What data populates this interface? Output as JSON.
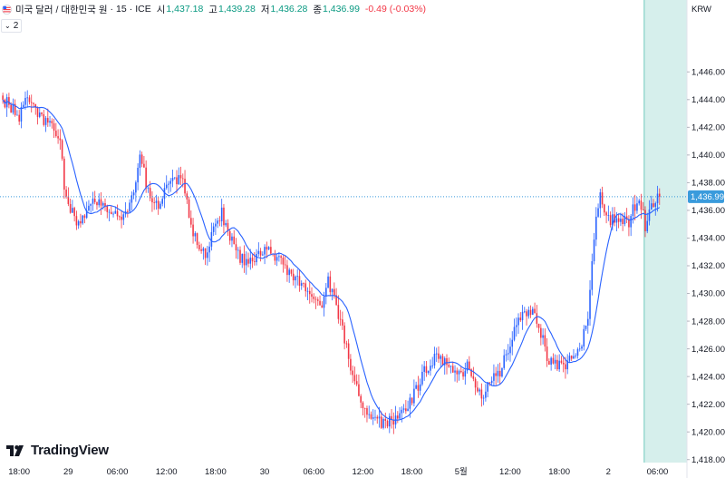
{
  "header": {
    "symbol": "미국 달러 / 대한민국 원",
    "interval": "15",
    "exchange": "ICE",
    "ohlc": [
      {
        "label": "시",
        "value": "1,437.18"
      },
      {
        "label": "고",
        "value": "1,439.28"
      },
      {
        "label": "저",
        "value": "1,436.28"
      },
      {
        "label": "종",
        "value": "1,436.99"
      }
    ],
    "change": "-0.49 (-0.03%)"
  },
  "indicator": {
    "label": "2"
  },
  "currency": "KRW",
  "watermark": "TradingView",
  "colors": {
    "up": "#089981",
    "down": "#f23645",
    "ma": "#2962ff",
    "highlight": "#d6efec",
    "price_line": "#3a9bdc"
  },
  "chart_data": {
    "type": "candlestick",
    "title": "미국 달러 / 대한민국 원 · 15 · ICE",
    "y_range": [
      1417.0,
      1450.8
    ],
    "y_ticks": [
      1418,
      1420,
      1422,
      1424,
      1426,
      1428,
      1430,
      1432,
      1434,
      1436,
      1438,
      1440,
      1442,
      1444,
      1446
    ],
    "y_tick_labels": [
      "1,418.00",
      "1,420.00",
      "1,422.00",
      "1,424.00",
      "1,426.00",
      "1,428.00",
      "1,430.00",
      "1,432.00",
      "1,434.00",
      "1,436.00",
      "1,438.00",
      "1,440.00",
      "1,442.00",
      "1,444.00",
      "1,446.00"
    ],
    "x_ticks": [
      {
        "label": "18:00",
        "at": 0
      },
      {
        "label": "29",
        "at": 24
      },
      {
        "label": "06:00",
        "at": 48
      },
      {
        "label": "12:00",
        "at": 72
      },
      {
        "label": "18:00",
        "at": 96
      },
      {
        "label": "30",
        "at": 120
      },
      {
        "label": "06:00",
        "at": 144
      },
      {
        "label": "12:00",
        "at": 168
      },
      {
        "label": "18:00",
        "at": 192
      },
      {
        "label": "5월",
        "at": 216
      },
      {
        "label": "12:00",
        "at": 240
      },
      {
        "label": "18:00",
        "at": 264
      },
      {
        "label": "2",
        "at": 288
      },
      {
        "label": "06:00",
        "at": 312
      }
    ],
    "bars_total": 334,
    "bars_visible": 322,
    "highlight_from_bar": 314,
    "last_price": 1436.99,
    "last_price_label": "1,436.99",
    "ma_period": 12,
    "series": {
      "name": "USD/KRW",
      "close_path": [
        {
          "i": 0,
          "v": 1444.0
        },
        {
          "i": 4,
          "v": 1443.5
        },
        {
          "i": 8,
          "v": 1442.7
        },
        {
          "i": 12,
          "v": 1444.2
        },
        {
          "i": 16,
          "v": 1443.1
        },
        {
          "i": 20,
          "v": 1442.6
        },
        {
          "i": 24,
          "v": 1442.0
        },
        {
          "i": 28,
          "v": 1441.2
        },
        {
          "i": 30,
          "v": 1437.5
        },
        {
          "i": 32,
          "v": 1436.6
        },
        {
          "i": 36,
          "v": 1435.2
        },
        {
          "i": 40,
          "v": 1435.7
        },
        {
          "i": 44,
          "v": 1436.4
        },
        {
          "i": 48,
          "v": 1436.6
        },
        {
          "i": 52,
          "v": 1436.0
        },
        {
          "i": 56,
          "v": 1435.4
        },
        {
          "i": 60,
          "v": 1435.6
        },
        {
          "i": 64,
          "v": 1437.6
        },
        {
          "i": 67,
          "v": 1440.2
        },
        {
          "i": 70,
          "v": 1438.0
        },
        {
          "i": 72,
          "v": 1437.2
        },
        {
          "i": 76,
          "v": 1436.4
        },
        {
          "i": 80,
          "v": 1437.6
        },
        {
          "i": 84,
          "v": 1438.4
        },
        {
          "i": 88,
          "v": 1438.0
        },
        {
          "i": 92,
          "v": 1435.0
        },
        {
          "i": 95,
          "v": 1433.5
        },
        {
          "i": 99,
          "v": 1433.0
        },
        {
          "i": 103,
          "v": 1434.5
        },
        {
          "i": 107,
          "v": 1435.8
        },
        {
          "i": 111,
          "v": 1434.0
        },
        {
          "i": 115,
          "v": 1432.8
        },
        {
          "i": 119,
          "v": 1432.2
        },
        {
          "i": 123,
          "v": 1432.6
        },
        {
          "i": 127,
          "v": 1433.2
        },
        {
          "i": 131,
          "v": 1433.0
        },
        {
          "i": 135,
          "v": 1432.4
        },
        {
          "i": 139,
          "v": 1431.4
        },
        {
          "i": 143,
          "v": 1431.2
        },
        {
          "i": 147,
          "v": 1430.3
        },
        {
          "i": 151,
          "v": 1429.8
        },
        {
          "i": 155,
          "v": 1428.8
        },
        {
          "i": 159,
          "v": 1430.8
        },
        {
          "i": 163,
          "v": 1429.2
        },
        {
          "i": 167,
          "v": 1426.6
        },
        {
          "i": 171,
          "v": 1424.0
        },
        {
          "i": 175,
          "v": 1422.4
        },
        {
          "i": 179,
          "v": 1421.2
        },
        {
          "i": 183,
          "v": 1420.8
        },
        {
          "i": 187,
          "v": 1420.6
        },
        {
          "i": 191,
          "v": 1420.8
        },
        {
          "i": 195,
          "v": 1421.2
        },
        {
          "i": 199,
          "v": 1422.2
        },
        {
          "i": 203,
          "v": 1423.4
        },
        {
          "i": 207,
          "v": 1424.6
        },
        {
          "i": 211,
          "v": 1425.4
        },
        {
          "i": 215,
          "v": 1425.1
        },
        {
          "i": 219,
          "v": 1424.4
        },
        {
          "i": 223,
          "v": 1424.0
        },
        {
          "i": 227,
          "v": 1424.8
        },
        {
          "i": 231,
          "v": 1423.0
        },
        {
          "i": 235,
          "v": 1422.8
        },
        {
          "i": 239,
          "v": 1423.8
        },
        {
          "i": 243,
          "v": 1424.4
        },
        {
          "i": 247,
          "v": 1425.8
        },
        {
          "i": 251,
          "v": 1427.6
        },
        {
          "i": 255,
          "v": 1428.6
        },
        {
          "i": 259,
          "v": 1428.8
        },
        {
          "i": 263,
          "v": 1427.2
        },
        {
          "i": 267,
          "v": 1425.0
        },
        {
          "i": 271,
          "v": 1424.8
        },
        {
          "i": 275,
          "v": 1424.6
        },
        {
          "i": 279,
          "v": 1425.6
        },
        {
          "i": 283,
          "v": 1426.6
        },
        {
          "i": 286,
          "v": 1427.8
        },
        {
          "i": 288,
          "v": 1432.2
        },
        {
          "i": 290,
          "v": 1435.6
        },
        {
          "i": 292,
          "v": 1437.2
        },
        {
          "i": 294,
          "v": 1436.0
        },
        {
          "i": 296,
          "v": 1435.3
        },
        {
          "i": 300,
          "v": 1435.6
        },
        {
          "i": 304,
          "v": 1435.4
        },
        {
          "i": 306,
          "v": 1435.0
        },
        {
          "i": 308,
          "v": 1436.6
        },
        {
          "i": 310,
          "v": 1436.2
        },
        {
          "i": 312,
          "v": 1436.4
        },
        {
          "i": 314,
          "v": 1434.8
        },
        {
          "i": 316,
          "v": 1436.2
        },
        {
          "i": 318,
          "v": 1436.6
        },
        {
          "i": 321,
          "v": 1436.99
        }
      ]
    }
  }
}
